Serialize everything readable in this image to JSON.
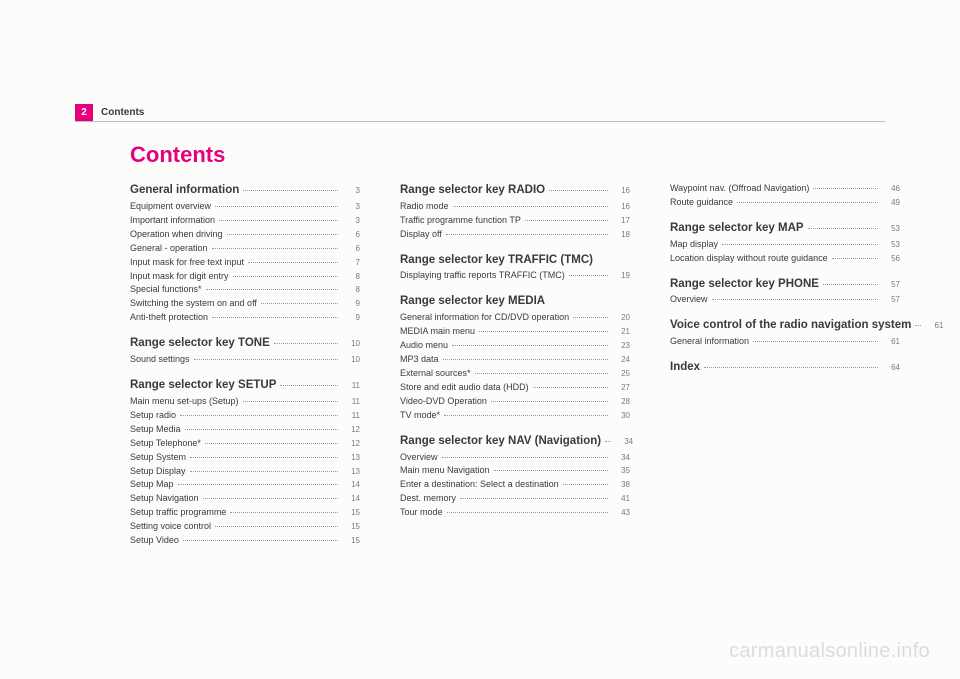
{
  "page_tab": {
    "number": "2",
    "label": "Contents"
  },
  "title": "Contents",
  "columns": [
    [
      {
        "type": "heading",
        "label": "General information",
        "page": "3"
      },
      {
        "type": "item",
        "label": "Equipment overview",
        "page": "3"
      },
      {
        "type": "item",
        "label": "Important information",
        "page": "3"
      },
      {
        "type": "item",
        "label": "Operation when driving",
        "page": "6"
      },
      {
        "type": "item",
        "label": "General - operation",
        "page": "6"
      },
      {
        "type": "item",
        "label": "Input mask for free text input",
        "page": "7"
      },
      {
        "type": "item",
        "label": "Input mask for digit entry",
        "page": "8"
      },
      {
        "type": "item",
        "label": "Special functions*",
        "page": "8"
      },
      {
        "type": "item",
        "label": "Switching the system on and off",
        "page": "9"
      },
      {
        "type": "item",
        "label": "Anti-theft protection",
        "page": "9"
      },
      {
        "type": "spacer"
      },
      {
        "type": "heading",
        "label": "Range selector key TONE",
        "page": "10"
      },
      {
        "type": "item",
        "label": "Sound settings",
        "page": "10"
      },
      {
        "type": "spacer"
      },
      {
        "type": "heading",
        "label": "Range selector key SETUP",
        "page": "11"
      },
      {
        "type": "item",
        "label": "Main menu set-ups (Setup)",
        "page": "11"
      },
      {
        "type": "item",
        "label": "Setup radio",
        "page": "11"
      },
      {
        "type": "item",
        "label": "Setup Media",
        "page": "12"
      },
      {
        "type": "item",
        "label": "Setup Telephone*",
        "page": "12"
      },
      {
        "type": "item",
        "label": "Setup System",
        "page": "13"
      },
      {
        "type": "item",
        "label": "Setup Display",
        "page": "13"
      },
      {
        "type": "item",
        "label": "Setup Map",
        "page": "14"
      },
      {
        "type": "item",
        "label": "Setup Navigation",
        "page": "14"
      },
      {
        "type": "item",
        "label": "Setup traffic programme",
        "page": "15"
      },
      {
        "type": "item",
        "label": "Setting voice control",
        "page": "15"
      },
      {
        "type": "item",
        "label": "Setup Video",
        "page": "15"
      }
    ],
    [
      {
        "type": "heading",
        "label": "Range selector key RADIO",
        "page": "16"
      },
      {
        "type": "item",
        "label": "Radio mode",
        "page": "16"
      },
      {
        "type": "item",
        "label": "Traffic programme function TP",
        "page": "17"
      },
      {
        "type": "item",
        "label": "Display off",
        "page": "18"
      },
      {
        "type": "spacer"
      },
      {
        "type": "heading",
        "label": "Range selector key TRAFFIC (TMC)",
        "page": ""
      },
      {
        "type": "item",
        "label": "Displaying traffic reports TRAFFIC (TMC)",
        "page": "19"
      },
      {
        "type": "spacer"
      },
      {
        "type": "heading",
        "label": "Range selector key MEDIA",
        "page": ""
      },
      {
        "type": "item",
        "label": "General information for CD/DVD operation",
        "page": "20"
      },
      {
        "type": "item",
        "label": "MEDIA main menu",
        "page": "21"
      },
      {
        "type": "item",
        "label": "Audio menu",
        "page": "23"
      },
      {
        "type": "item",
        "label": "MP3 data",
        "page": "24"
      },
      {
        "type": "item",
        "label": "External sources*",
        "page": "25"
      },
      {
        "type": "item",
        "label": "Store and edit audio data (HDD)",
        "page": "27"
      },
      {
        "type": "item",
        "label": "Video-DVD Operation",
        "page": "28"
      },
      {
        "type": "item",
        "label": "TV mode*",
        "page": "30"
      },
      {
        "type": "spacer"
      },
      {
        "type": "heading",
        "label": "Range selector key NAV (Navigation)",
        "page": "34"
      },
      {
        "type": "item",
        "label": "Overview",
        "page": "34"
      },
      {
        "type": "item",
        "label": "Main menu Navigation",
        "page": "35"
      },
      {
        "type": "item",
        "label": "Enter a destination: Select a destination",
        "page": "38"
      },
      {
        "type": "item",
        "label": "Dest. memory",
        "page": "41"
      },
      {
        "type": "item",
        "label": "Tour mode",
        "page": "43"
      }
    ],
    [
      {
        "type": "item",
        "label": "Waypoint nav. (Offroad Navigation)",
        "page": "46"
      },
      {
        "type": "item",
        "label": "Route guidance",
        "page": "49"
      },
      {
        "type": "spacer"
      },
      {
        "type": "heading",
        "label": "Range selector key MAP",
        "page": "53"
      },
      {
        "type": "item",
        "label": "Map display",
        "page": "53"
      },
      {
        "type": "item",
        "label": "Location display without route guidance",
        "page": "56"
      },
      {
        "type": "spacer"
      },
      {
        "type": "heading",
        "label": "Range selector key PHONE",
        "page": "57"
      },
      {
        "type": "item",
        "label": "Overview",
        "page": "57"
      },
      {
        "type": "spacer"
      },
      {
        "type": "heading",
        "label": "Voice control of the radio navigation system",
        "page": "61"
      },
      {
        "type": "item",
        "label": "General information",
        "page": "61"
      },
      {
        "type": "spacer"
      },
      {
        "type": "heading",
        "label": "Index",
        "page": "64"
      }
    ]
  ],
  "watermark": "carmanualsonline.info",
  "colors": {
    "accent": "#e6007e",
    "text": "#3a3a3a",
    "muted": "#7a7a7a",
    "rule": "#bdbdbd",
    "bg": "#fcfcfa"
  }
}
